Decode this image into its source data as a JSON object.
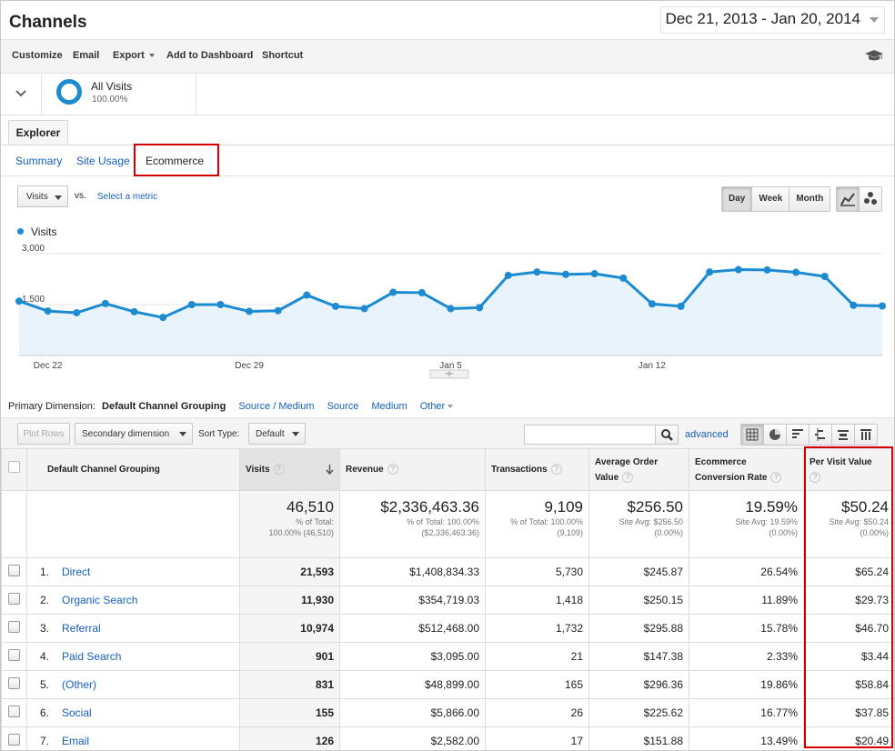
{
  "header": {
    "title": "Channels",
    "date_range": "Dec 21, 2013 - Jan 20, 2014"
  },
  "toolbar": {
    "customize": "Customize",
    "email": "Email",
    "export": "Export",
    "add_to_dashboard": "Add to Dashboard",
    "shortcut": "Shortcut"
  },
  "segment": {
    "name": "All Visits",
    "percent": "100.00%"
  },
  "explorer_tab": "Explorer",
  "subtabs": [
    "Summary",
    "Site Usage",
    "Ecommerce"
  ],
  "metric": {
    "selected": "Visits",
    "vs": "vs.",
    "select_metric": "Select a metric"
  },
  "period_buttons": [
    "Day",
    "Week",
    "Month"
  ],
  "period_selected": "Day",
  "chart_data": {
    "type": "area",
    "series": [
      {
        "name": "Visits",
        "color": "#1c8bd1",
        "values": [
          1600,
          1310,
          1260,
          1530,
          1290,
          1120,
          1500,
          1500,
          1300,
          1320,
          1780,
          1450,
          1380,
          1860,
          1850,
          1380,
          1410,
          2360,
          2460,
          2390,
          2410,
          2280,
          1520,
          1450,
          2460,
          2530,
          2520,
          2450,
          2330,
          1480,
          1460
        ]
      }
    ],
    "x_tick_labels": [
      "Dec 22",
      "Dec 29",
      "Jan 5",
      "Jan 12"
    ],
    "y_tick_labels": [
      "3,000",
      "1,500"
    ],
    "ylim": [
      0,
      3000
    ],
    "grid": true
  },
  "dimensions": {
    "label": "Primary Dimension:",
    "selected": "Default Channel Grouping",
    "options": [
      "Source / Medium",
      "Source",
      "Medium",
      "Other"
    ]
  },
  "table_controls": {
    "plot_rows": "Plot Rows",
    "secondary_dimension": "Secondary dimension",
    "sort_type_label": "Sort Type:",
    "sort_type_value": "Default",
    "advanced": "advanced"
  },
  "table": {
    "headers": {
      "dimension": "Default Channel Grouping",
      "visits": "Visits",
      "revenue": "Revenue",
      "transactions": "Transactions",
      "aov_1": "Average Order",
      "aov_2": "Value",
      "ecr_1": "Ecommerce",
      "ecr_2": "Conversion Rate",
      "pvv": "Per Visit Value"
    },
    "totals": {
      "visits": {
        "value": "46,510",
        "sub1": "% of Total:",
        "sub2": "100.00% (46,510)"
      },
      "revenue": {
        "value": "$2,336,463.36",
        "sub1": "% of Total: 100.00%",
        "sub2": "($2,336,463.36)"
      },
      "transactions": {
        "value": "9,109",
        "sub1": "% of Total: 100.00%",
        "sub2": "(9,109)"
      },
      "aov": {
        "value": "$256.50",
        "sub1": "Site Avg: $256.50",
        "sub2": "(0.00%)"
      },
      "ecr": {
        "value": "19.59%",
        "sub1": "Site Avg: 19.59%",
        "sub2": "(0.00%)"
      },
      "pvv": {
        "value": "$50.24",
        "sub1": "Site Avg: $50.24",
        "sub2": "(0.00%)"
      }
    },
    "rows": [
      {
        "idx": "1.",
        "channel": "Direct",
        "visits": "21,593",
        "revenue": "$1,408,834.33",
        "transactions": "5,730",
        "aov": "$245.87",
        "ecr": "26.54%",
        "pvv": "$65.24"
      },
      {
        "idx": "2.",
        "channel": "Organic Search",
        "visits": "11,930",
        "revenue": "$354,719.03",
        "transactions": "1,418",
        "aov": "$250.15",
        "ecr": "11.89%",
        "pvv": "$29.73"
      },
      {
        "idx": "3.",
        "channel": "Referral",
        "visits": "10,974",
        "revenue": "$512,468.00",
        "transactions": "1,732",
        "aov": "$295.88",
        "ecr": "15.78%",
        "pvv": "$46.70"
      },
      {
        "idx": "4.",
        "channel": "Paid Search",
        "visits": "901",
        "revenue": "$3,095.00",
        "transactions": "21",
        "aov": "$147.38",
        "ecr": "2.33%",
        "pvv": "$3.44"
      },
      {
        "idx": "5.",
        "channel": "(Other)",
        "visits": "831",
        "revenue": "$48,899.00",
        "transactions": "165",
        "aov": "$296.36",
        "ecr": "19.86%",
        "pvv": "$58.84"
      },
      {
        "idx": "6.",
        "channel": "Social",
        "visits": "155",
        "revenue": "$5,866.00",
        "transactions": "26",
        "aov": "$225.62",
        "ecr": "16.77%",
        "pvv": "$37.85"
      },
      {
        "idx": "7.",
        "channel": "Email",
        "visits": "126",
        "revenue": "$2,582.00",
        "transactions": "17",
        "aov": "$151.88",
        "ecr": "13.49%",
        "pvv": "$20.49"
      }
    ]
  },
  "colors": {
    "accent": "#1c8bd1",
    "link": "#1560bd",
    "highlight": "#d40000"
  }
}
